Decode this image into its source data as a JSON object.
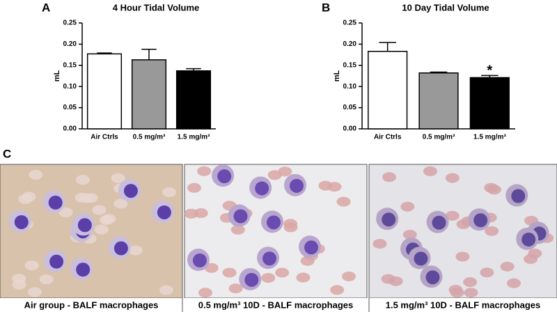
{
  "chart_data": [
    {
      "type": "bar",
      "panel_label": "A",
      "title": "4 Hour Tidal Volume",
      "y_label": "mL",
      "categories": [
        "Air Ctrls",
        "0.5 mg/m³",
        "1.5 mg/m³"
      ],
      "values": [
        0.177,
        0.163,
        0.137
      ],
      "errors": [
        0.002,
        0.025,
        0.005
      ],
      "colors": [
        "#ffffff",
        "#999999",
        "#000000"
      ],
      "ylim": [
        0,
        0.25
      ],
      "yticks": [
        {
          "value": 0,
          "label": "0.00"
        },
        {
          "value": 0.05,
          "label": "0.05"
        },
        {
          "value": 0.1,
          "label": "0.10"
        },
        {
          "value": 0.15,
          "label": "0.15"
        },
        {
          "value": 0.2,
          "label": "0.20"
        },
        {
          "value": 0.25,
          "label": "0.25"
        }
      ]
    },
    {
      "type": "bar",
      "panel_label": "B",
      "title": "10 Day Tidal Volume",
      "y_label": "mL",
      "categories": [
        "Air Ctrls",
        "0.5 mg/m³",
        "1.5 mg/m³"
      ],
      "values": [
        0.183,
        0.132,
        0.121
      ],
      "errors": [
        0.021,
        0.002,
        0.005
      ],
      "colors": [
        "#ffffff",
        "#999999",
        "#000000"
      ],
      "ylim": [
        0,
        0.25
      ],
      "yticks": [
        {
          "value": 0,
          "label": "0.00"
        },
        {
          "value": 0.05,
          "label": "0.05"
        },
        {
          "value": 0.1,
          "label": "0.10"
        },
        {
          "value": 0.15,
          "label": "0.15"
        },
        {
          "value": 0.2,
          "label": "0.20"
        },
        {
          "value": 0.25,
          "label": "0.25"
        }
      ],
      "annotations": [
        {
          "text": "*",
          "x": "1.5 mg/m³"
        }
      ]
    }
  ],
  "panel_c": {
    "label": "C",
    "captions": [
      "Air group - BALF macrophages",
      "0.5 mg/m³ 10D - BALF macrophages",
      "1.5 mg/m³ 10D - BALF macrophages"
    ]
  }
}
